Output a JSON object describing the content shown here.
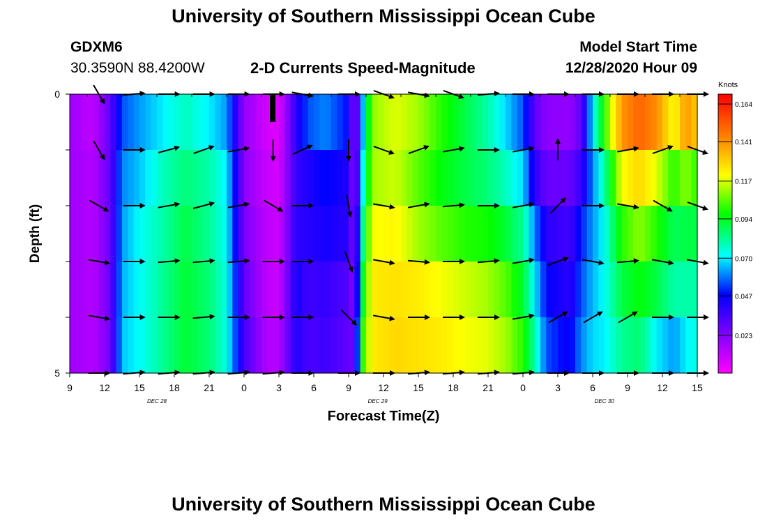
{
  "header": {
    "title_top": "University of Southern Mississippi Ocean Cube",
    "title_bottom": "University of Southern Mississippi Ocean Cube",
    "station_id": "GDXM6",
    "station_coords": "30.3590N 88.4200W",
    "plot_title": "2-D Currents Speed-Magnitude",
    "model_start_label": "Model Start Time",
    "model_start_value": "12/28/2020 Hour 09"
  },
  "chart_data": {
    "type": "heatmap",
    "title": "2-D Currents Speed-Magnitude",
    "xlabel": "Forecast Time(Z)",
    "ylabel": "Depth (ft)",
    "x_tick_labels": [
      "9",
      "12",
      "15",
      "18",
      "21",
      "0",
      "3",
      "6",
      "9",
      "12",
      "15",
      "18",
      "21",
      "0",
      "3",
      "6",
      "9",
      "12",
      "15"
    ],
    "x_hours": [
      0,
      3,
      6,
      9,
      12,
      15,
      18,
      21,
      24,
      27,
      30,
      33,
      36,
      39,
      42,
      45,
      48,
      51,
      54
    ],
    "date_labels": [
      {
        "text": "DEC 28",
        "hour": 7.5
      },
      {
        "text": "DEC 29",
        "hour": 26.5
      },
      {
        "text": "DEC 30",
        "hour": 46
      }
    ],
    "y_tick_labels": [
      "0",
      "5"
    ],
    "ylim": [
      0,
      5
    ],
    "colorbar": {
      "unit": "Knots",
      "tick_labels": [
        "0.164",
        "0.141",
        "0.117",
        "0.094",
        "0.070",
        "0.047",
        "0.023"
      ],
      "tick_values": [
        0.164,
        0.141,
        0.117,
        0.094,
        0.07,
        0.047,
        0.023
      ],
      "range": [
        0.0,
        0.17
      ]
    },
    "depth_bins": [
      0,
      1,
      2,
      3,
      4,
      5
    ],
    "columns": [
      {
        "t": 0,
        "s": [
          0.018,
          0.018,
          0.018,
          0.018,
          0.018
        ]
      },
      {
        "t": 2,
        "s": [
          0.012,
          0.014,
          0.014,
          0.014,
          0.014
        ]
      },
      {
        "t": 3.5,
        "s": [
          0.03,
          0.03,
          0.028,
          0.028,
          0.026
        ]
      },
      {
        "t": 4.5,
        "s": [
          0.055,
          0.06,
          0.062,
          0.064,
          0.066
        ]
      },
      {
        "t": 6,
        "s": [
          0.062,
          0.066,
          0.072,
          0.072,
          0.072
        ]
      },
      {
        "t": 8,
        "s": [
          0.07,
          0.078,
          0.08,
          0.082,
          0.082
        ]
      },
      {
        "t": 10,
        "s": [
          0.078,
          0.085,
          0.09,
          0.092,
          0.092
        ]
      },
      {
        "t": 12,
        "s": [
          0.07,
          0.08,
          0.082,
          0.085,
          0.085
        ]
      },
      {
        "t": 13.5,
        "s": [
          0.062,
          0.07,
          0.072,
          0.074,
          0.074
        ]
      },
      {
        "t": 15,
        "s": [
          0.02,
          0.022,
          0.025,
          0.03,
          0.035
        ]
      },
      {
        "t": 17,
        "s": [
          0.008,
          0.01,
          0.012,
          0.012,
          0.014
        ]
      },
      {
        "t": 18,
        "s": [
          0.006,
          0.008,
          0.01,
          0.01,
          0.014
        ]
      },
      {
        "t": 19.5,
        "s": [
          0.04,
          0.038,
          0.04,
          0.044,
          0.042
        ]
      },
      {
        "t": 20.5,
        "s": [
          0.055,
          0.042,
          0.04,
          0.036,
          0.034
        ]
      },
      {
        "t": 22,
        "s": [
          0.06,
          0.048,
          0.044,
          0.038,
          0.036
        ]
      },
      {
        "t": 24,
        "s": [
          0.048,
          0.042,
          0.04,
          0.032,
          0.03
        ]
      },
      {
        "t": 24.5,
        "s": [
          0.014,
          0.014,
          0.018,
          0.02,
          0.026
        ]
      },
      {
        "t": 25.2,
        "s": [
          0.062,
          0.07,
          0.08,
          0.09,
          0.1
        ]
      },
      {
        "t": 26,
        "s": [
          0.11,
          0.112,
          0.12,
          0.124,
          0.124
        ]
      },
      {
        "t": 28,
        "s": [
          0.118,
          0.116,
          0.122,
          0.126,
          0.128
        ]
      },
      {
        "t": 30,
        "s": [
          0.112,
          0.105,
          0.112,
          0.124,
          0.126
        ]
      },
      {
        "t": 32,
        "s": [
          0.1,
          0.096,
          0.105,
          0.12,
          0.124
        ]
      },
      {
        "t": 34,
        "s": [
          0.09,
          0.09,
          0.1,
          0.116,
          0.12
        ]
      },
      {
        "t": 36,
        "s": [
          0.08,
          0.085,
          0.098,
          0.112,
          0.118
        ]
      },
      {
        "t": 37.5,
        "s": [
          0.068,
          0.078,
          0.092,
          0.105,
          0.112
        ]
      },
      {
        "t": 39,
        "s": [
          0.055,
          0.068,
          0.082,
          0.092,
          0.1
        ]
      },
      {
        "t": 40,
        "s": [
          0.03,
          0.04,
          0.06,
          0.07,
          0.08
        ]
      },
      {
        "t": 41,
        "s": [
          0.022,
          0.028,
          0.04,
          0.048,
          0.055
        ]
      },
      {
        "t": 43,
        "s": [
          0.02,
          0.028,
          0.035,
          0.04,
          0.045
        ]
      },
      {
        "t": 44,
        "s": [
          0.03,
          0.038,
          0.05,
          0.055,
          0.06
        ]
      },
      {
        "t": 45,
        "s": [
          0.07,
          0.06,
          0.062,
          0.065,
          0.068
        ]
      },
      {
        "t": 46,
        "s": [
          0.1,
          0.08,
          0.072,
          0.072,
          0.07
        ]
      },
      {
        "t": 47.5,
        "s": [
          0.14,
          0.12,
          0.1,
          0.09,
          0.082
        ]
      },
      {
        "t": 49,
        "s": [
          0.15,
          0.128,
          0.11,
          0.096,
          0.086
        ]
      },
      {
        "t": 50.5,
        "s": [
          0.142,
          0.118,
          0.1,
          0.09,
          0.07
        ]
      },
      {
        "t": 52,
        "s": [
          0.12,
          0.1,
          0.088,
          0.08,
          0.062
        ]
      },
      {
        "t": 53,
        "s": [
          0.14,
          0.11,
          0.09,
          0.08,
          0.07
        ]
      },
      {
        "t": 54,
        "s": [
          0.13,
          0.1,
          0.09,
          0.08,
          0.075
        ]
      }
    ],
    "vectors": {
      "depths": [
        0,
        1,
        2,
        3,
        4,
        5
      ],
      "hours": [
        2.5,
        5.5,
        8.5,
        11.5,
        14.5,
        17.5,
        20,
        24,
        27,
        30,
        33,
        36,
        39,
        42,
        45,
        48,
        51,
        54
      ],
      "angles_deg": [
        [
          300,
          5,
          0,
          0,
          0,
          0,
          350,
          0,
          340,
          350,
          340,
          5,
          0,
          0,
          0,
          0,
          0,
          0
        ],
        [
          300,
          0,
          15,
          20,
          10,
          270,
          25,
          270,
          340,
          20,
          10,
          0,
          10,
          90,
          0,
          10,
          20,
          340
        ],
        [
          330,
          0,
          10,
          15,
          10,
          330,
          0,
          280,
          350,
          10,
          5,
          0,
          10,
          45,
          0,
          350,
          330,
          340
        ],
        [
          350,
          0,
          5,
          5,
          5,
          0,
          0,
          290,
          350,
          355,
          0,
          5,
          10,
          20,
          350,
          5,
          350,
          350
        ],
        [
          350,
          0,
          0,
          5,
          0,
          0,
          0,
          315,
          350,
          0,
          0,
          0,
          10,
          30,
          30,
          30,
          0,
          0
        ],
        [
          0,
          5,
          5,
          5,
          5,
          5,
          0,
          0,
          0,
          5,
          5,
          5,
          5,
          0,
          0,
          0,
          0,
          0
        ]
      ]
    }
  }
}
